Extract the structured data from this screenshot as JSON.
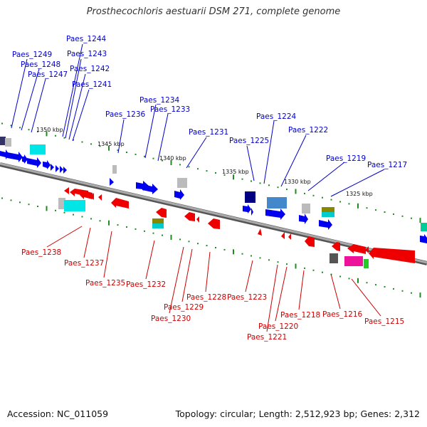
{
  "title": "Prosthecochloris aestuarii DSM 271, complete genome",
  "footer": {
    "accession": "Accession: NC_011059",
    "topology": "Topology: circular; Length: 2,512,923 bp; Genes: 2,312"
  },
  "colors": {
    "forward_label": "#0000cc",
    "reverse_label": "#cc0000",
    "backbone": "#888888",
    "tick": "#1e8c1e"
  },
  "kbp_marks": [
    "1350 kbp",
    "1345 kbp",
    "1340 kbp",
    "1335 kbp",
    "1330 kbp",
    "1325 kbp"
  ],
  "forward_genes": [
    "Paes_1249",
    "Paes_1248",
    "Paes_1247",
    "Paes_1244",
    "Paes_1243",
    "Paes_1242",
    "Paes_1241",
    "Paes_1236",
    "Paes_1234",
    "Paes_1233",
    "Paes_1231",
    "Paes_1225",
    "Paes_1224",
    "Paes_1222",
    "Paes_1219",
    "Paes_1217"
  ],
  "reverse_genes": [
    "Paes_1238",
    "Paes_1237",
    "Paes_1235",
    "Paes_1232",
    "Paes_1230",
    "Paes_1229",
    "Paes_1228",
    "Paes_1223",
    "Paes_1221",
    "Paes_1220",
    "Paes_1218",
    "Paes_1216",
    "Paes_1215"
  ]
}
